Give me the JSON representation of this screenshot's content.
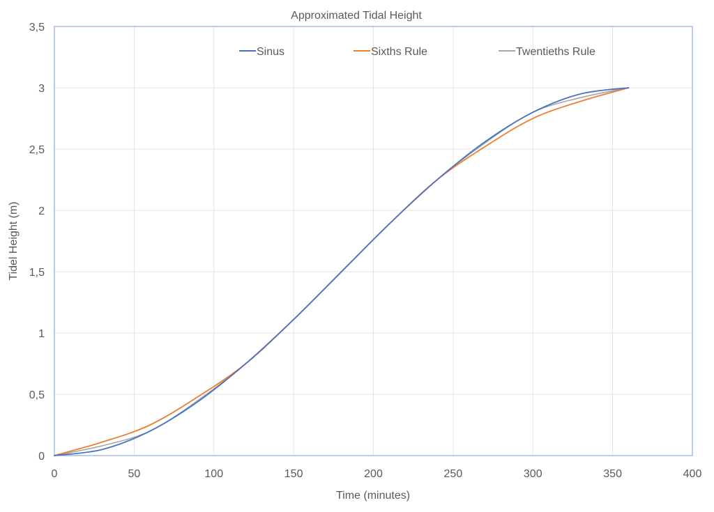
{
  "chart_data": {
    "type": "line",
    "title": "Approximated Tidal Height",
    "xlabel": "Time (minutes)",
    "ylabel": "Tidel Height (m)",
    "xlim": [
      0,
      400
    ],
    "ylim": [
      0,
      3.5
    ],
    "x_ticks": [
      0,
      50,
      100,
      150,
      200,
      250,
      300,
      350,
      400
    ],
    "x_tick_labels": [
      "0",
      "50",
      "100",
      "150",
      "200",
      "250",
      "300",
      "350",
      "400"
    ],
    "y_ticks": [
      0,
      0.5,
      1,
      1.5,
      2,
      2.5,
      3,
      3.5
    ],
    "y_tick_labels": [
      "0",
      "0,5",
      "1",
      "1,5",
      "2",
      "2,5",
      "3",
      "3,5"
    ],
    "grid": true,
    "legend_position": "top",
    "series": [
      {
        "name": "Sinus",
        "color": "#4472c4",
        "x": [
          0,
          30,
          60,
          90,
          120,
          150,
          180,
          210,
          240,
          270,
          300,
          330,
          360
        ],
        "y": [
          0,
          0.05,
          0.2,
          0.44,
          0.75,
          1.11,
          1.5,
          1.89,
          2.25,
          2.56,
          2.8,
          2.95,
          3.0
        ]
      },
      {
        "name": "Sixths Rule",
        "color": "#ed7d31",
        "x": [
          0,
          30,
          60,
          90,
          120,
          150,
          180,
          210,
          240,
          270,
          300,
          330,
          360
        ],
        "y": [
          0,
          0.11,
          0.25,
          0.48,
          0.75,
          1.11,
          1.5,
          1.89,
          2.25,
          2.52,
          2.75,
          2.89,
          3.0
        ]
      },
      {
        "name": "Twentieths Rule",
        "color": "#a5a5a5",
        "x": [
          0,
          30,
          60,
          90,
          120,
          150,
          180,
          210,
          240,
          270,
          300,
          330,
          360
        ],
        "y": [
          0,
          0.08,
          0.2,
          0.45,
          0.75,
          1.11,
          1.5,
          1.89,
          2.25,
          2.55,
          2.8,
          2.92,
          3.0
        ]
      }
    ]
  }
}
